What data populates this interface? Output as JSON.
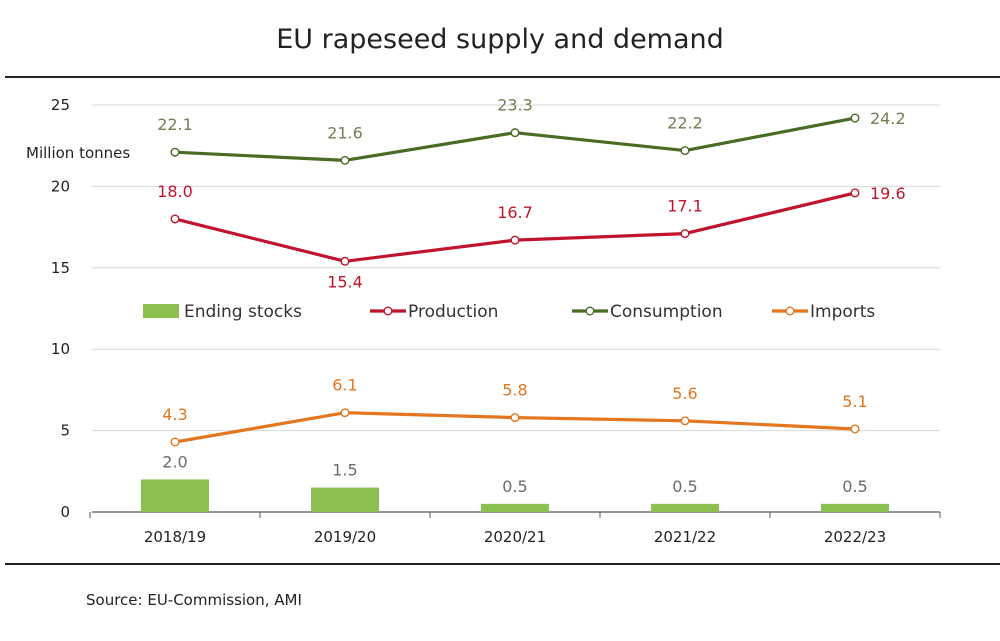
{
  "title": "EU rapeseed supply and demand",
  "source": "Source: EU-Commission, AMI",
  "colors": {
    "ending_stocks": "#8cc152",
    "production": "#c0142c",
    "consumption": "#4a6b23",
    "imports": "#e3761f",
    "grid": "#d9d9d9",
    "axis": "#555555"
  },
  "chart_data": {
    "type": "line",
    "title": "EU rapeseed supply and demand",
    "ylabel": "Million tonnes",
    "xlabel": "",
    "ylim": [
      0,
      25
    ],
    "yticks": [
      "0",
      "5",
      "10",
      "15",
      "20",
      "25"
    ],
    "categories": [
      "2018/19",
      "2019/20",
      "2020/21",
      "2021/22",
      "2022/23"
    ],
    "grid": true,
    "legend_position": "middle",
    "series": [
      {
        "name": "Ending stocks",
        "type": "bar",
        "values": [
          2.0,
          1.5,
          0.5,
          0.5,
          0.5
        ],
        "labels": [
          "2.0",
          "1.5",
          "0.5",
          "0.5",
          "0.5"
        ]
      },
      {
        "name": "Production",
        "type": "line",
        "values": [
          18.0,
          15.4,
          16.7,
          17.1,
          19.6
        ],
        "labels": [
          "18.0",
          "15.4",
          "16.7",
          "17.1",
          "19.6"
        ]
      },
      {
        "name": "Consumption",
        "type": "line",
        "values": [
          22.1,
          21.6,
          23.3,
          22.2,
          24.2
        ],
        "labels": [
          "22.1",
          "21.6",
          "23.3",
          "22.2",
          "24.2"
        ]
      },
      {
        "name": "Imports",
        "type": "line",
        "values": [
          4.3,
          6.1,
          5.8,
          5.6,
          5.1
        ],
        "labels": [
          "4.3",
          "6.1",
          "5.8",
          "5.6",
          "5.1"
        ]
      }
    ]
  }
}
